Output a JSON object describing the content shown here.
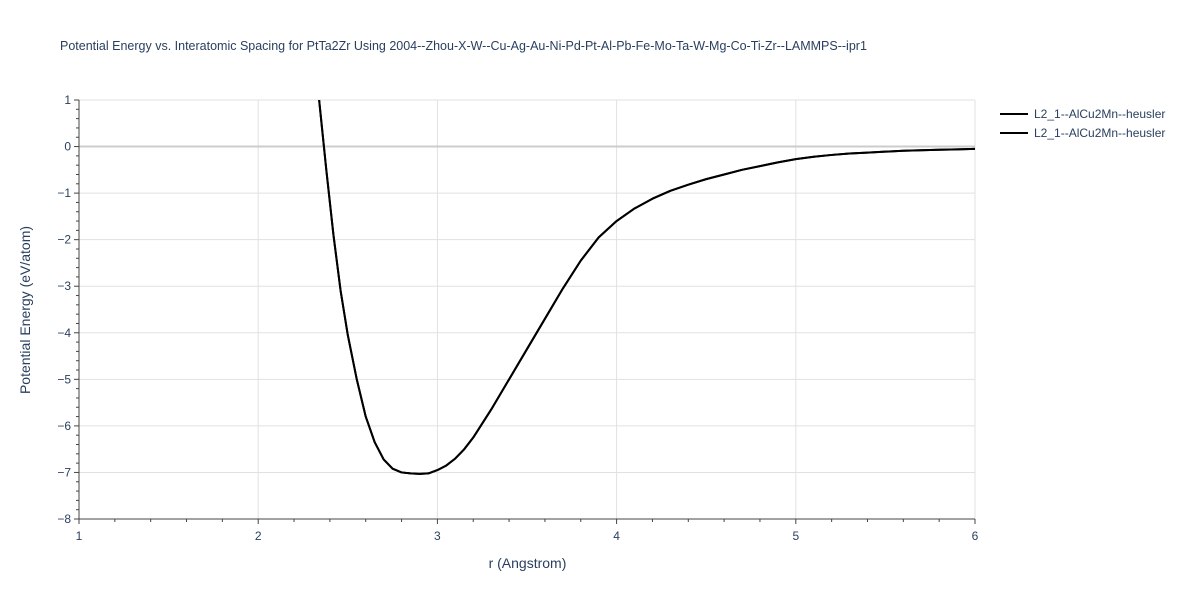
{
  "chart_data": {
    "type": "line",
    "title": "Potential Energy vs. Interatomic Spacing for PtTa2Zr Using 2004--Zhou-X-W--Cu-Ag-Au-Ni-Pd-Pt-Al-Pb-Fe-Mo-Ta-W-Mg-Co-Ti-Zr--LAMMPS--ipr1",
    "xlabel": "r (Angstrom)",
    "ylabel": "Potential Energy (eV/atom)",
    "xlim": [
      1,
      6
    ],
    "ylim": [
      -8,
      1
    ],
    "x_ticks": [
      1,
      2,
      3,
      4,
      5,
      6
    ],
    "y_ticks": [
      1,
      0,
      -1,
      -2,
      -3,
      -4,
      -5,
      -6,
      -7,
      -8
    ],
    "x_tick_labels": [
      "1",
      "2",
      "3",
      "4",
      "5",
      "6"
    ],
    "y_tick_labels": [
      "1",
      "0",
      "−1",
      "−2",
      "−3",
      "−4",
      "−5",
      "−6",
      "−7",
      "−8"
    ],
    "grid": true,
    "legend_position": "top-right",
    "line_color": "#000000",
    "series": [
      {
        "name": "L2_1--AlCu2Mn--heusler",
        "x": [
          2.34,
          2.38,
          2.42,
          2.46,
          2.5,
          2.55,
          2.6,
          2.65,
          2.7,
          2.75,
          2.8,
          2.85,
          2.9,
          2.95,
          3.0,
          3.05,
          3.1,
          3.15,
          3.2,
          3.3,
          3.4,
          3.5,
          3.6,
          3.7,
          3.8,
          3.9,
          4.0,
          4.1,
          4.2,
          4.3,
          4.4,
          4.5,
          4.6,
          4.7,
          4.8,
          4.9,
          5.0,
          5.1,
          5.2,
          5.3,
          5.4,
          5.5,
          5.6,
          5.7,
          5.8,
          5.9,
          6.0
        ],
        "y": [
          1.0,
          -0.5,
          -1.9,
          -3.1,
          -4.05,
          -5.0,
          -5.8,
          -6.35,
          -6.72,
          -6.92,
          -7.0,
          -7.02,
          -7.03,
          -7.02,
          -6.95,
          -6.85,
          -6.7,
          -6.5,
          -6.25,
          -5.65,
          -5.0,
          -4.35,
          -3.7,
          -3.05,
          -2.45,
          -1.95,
          -1.6,
          -1.33,
          -1.12,
          -0.95,
          -0.82,
          -0.7,
          -0.6,
          -0.5,
          -0.42,
          -0.34,
          -0.27,
          -0.22,
          -0.18,
          -0.15,
          -0.13,
          -0.11,
          -0.09,
          -0.08,
          -0.07,
          -0.06,
          -0.05
        ]
      },
      {
        "name": "L2_1--AlCu2Mn--heusler",
        "x": [
          2.34,
          2.38,
          2.42,
          2.46,
          2.5,
          2.55,
          2.6,
          2.65,
          2.7,
          2.75,
          2.8,
          2.85,
          2.9,
          2.95,
          3.0,
          3.05,
          3.1,
          3.15,
          3.2,
          3.3,
          3.4,
          3.5,
          3.6,
          3.7,
          3.8,
          3.9,
          4.0,
          4.1,
          4.2,
          4.3,
          4.4,
          4.5,
          4.6,
          4.7,
          4.8,
          4.9,
          5.0,
          5.1,
          5.2,
          5.3,
          5.4,
          5.5,
          5.6,
          5.7,
          5.8,
          5.9,
          6.0
        ],
        "y": [
          1.0,
          -0.5,
          -1.9,
          -3.1,
          -4.05,
          -5.0,
          -5.8,
          -6.35,
          -6.72,
          -6.92,
          -7.0,
          -7.02,
          -7.03,
          -7.02,
          -6.95,
          -6.85,
          -6.7,
          -6.5,
          -6.25,
          -5.65,
          -5.0,
          -4.35,
          -3.7,
          -3.05,
          -2.45,
          -1.95,
          -1.6,
          -1.33,
          -1.12,
          -0.95,
          -0.82,
          -0.7,
          -0.6,
          -0.5,
          -0.42,
          -0.34,
          -0.27,
          -0.22,
          -0.18,
          -0.15,
          -0.13,
          -0.11,
          -0.09,
          -0.08,
          -0.07,
          -0.06,
          -0.05
        ]
      }
    ]
  }
}
